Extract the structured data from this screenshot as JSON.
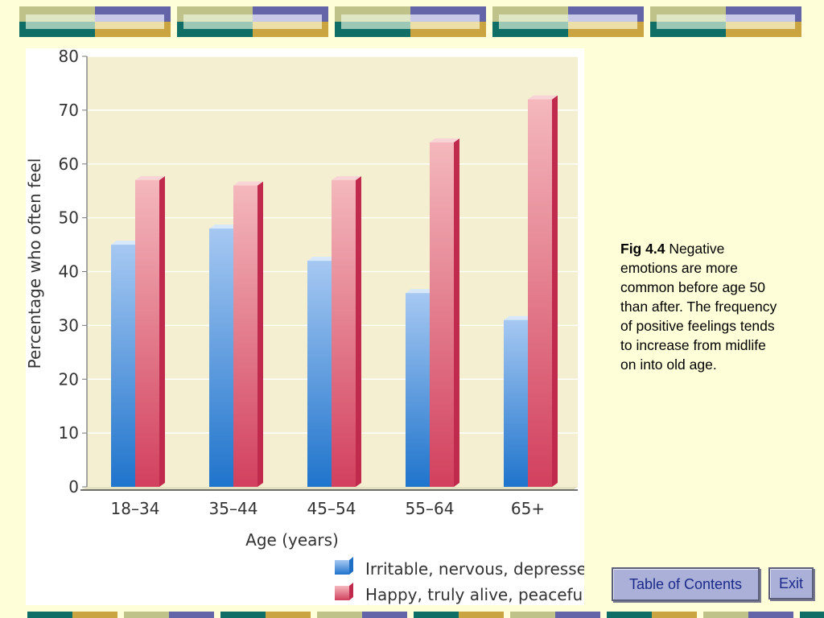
{
  "figure": {
    "caption_label": "Fig 4.4",
    "caption_text": "Negative emotions are more common before age 50 than after. The frequency of positive feelings tends to increase from midlife on into old age."
  },
  "nav": {
    "toc_label": "Table of Contents",
    "exit_label": "Exit"
  },
  "colors": {
    "background": "#fefed8",
    "irritable_series": "#3b82d6",
    "happy_series": "#d8506a",
    "button_bg": "#aab0d8",
    "button_text": "#1b2a8a"
  },
  "chart_data": {
    "type": "bar",
    "title": "",
    "xlabel": "Age (years)",
    "ylabel": "Percentage who often feel",
    "ylim": [
      0,
      80
    ],
    "yticks": [
      0,
      10,
      20,
      30,
      40,
      50,
      60,
      70,
      80
    ],
    "grid": true,
    "legend_position": "bottom-right",
    "categories": [
      "18–34",
      "35–44",
      "45–54",
      "55–64",
      "65+"
    ],
    "series": [
      {
        "name": "Irritable, nervous, depressed",
        "values": [
          45,
          48,
          42,
          36,
          31
        ]
      },
      {
        "name": "Happy, truly alive, peaceful",
        "values": [
          57,
          56,
          57,
          64,
          72
        ]
      }
    ]
  }
}
